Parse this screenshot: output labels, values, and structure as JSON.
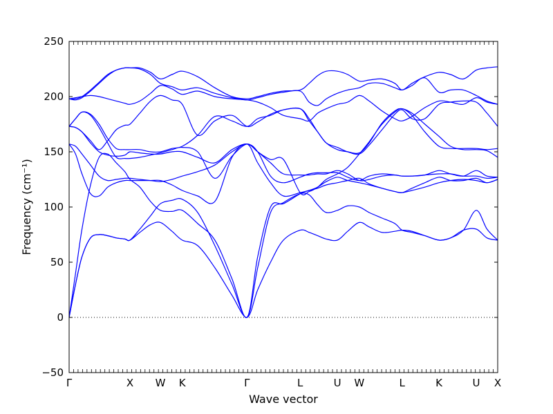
{
  "chart_data": {
    "type": "line",
    "title": "",
    "xlabel": "Wave vector",
    "ylabel": "Frequency (cm⁻¹)",
    "ylim": [
      -50,
      250
    ],
    "yticks": [
      -50,
      0,
      50,
      100,
      150,
      200,
      250
    ],
    "grid": false,
    "legend": "none",
    "line_color": "#0000ff",
    "zero_line": {
      "y": 0,
      "style": "dotted"
    },
    "xlim": [
      0,
      1
    ],
    "high_symmetry_points": [
      {
        "label": "Γ",
        "x": 0.0
      },
      {
        "label": "X",
        "x": 0.142
      },
      {
        "label": "W",
        "x": 0.213
      },
      {
        "label": "K",
        "x": 0.264
      },
      {
        "label": "Γ",
        "x": 0.415
      },
      {
        "label": "L",
        "x": 0.539
      },
      {
        "label": "U",
        "x": 0.626
      },
      {
        "label": "W",
        "x": 0.677
      },
      {
        "label": "L",
        "x": 0.777
      },
      {
        "label": "K",
        "x": 0.863
      },
      {
        "label": "U",
        "x": 0.95
      },
      {
        "label": "X",
        "x": 1.0
      }
    ],
    "series": [
      {
        "x": [
          0,
          0.015,
          0.03,
          0.05,
          0.07,
          0.09,
          0.11,
          0.13,
          0.142,
          0.165,
          0.19,
          0.213,
          0.24,
          0.264,
          0.3,
          0.34,
          0.38,
          0.415,
          0.44,
          0.47,
          0.5,
          0.539,
          0.56,
          0.58,
          0.6,
          0.626,
          0.65,
          0.677,
          0.7,
          0.73,
          0.76,
          0.777,
          0.8,
          0.83,
          0.863,
          0.89,
          0.92,
          0.95,
          0.975,
          1.0
        ],
        "y": [
          0,
          30,
          55,
          72,
          75,
          74,
          72,
          71,
          70,
          77,
          84,
          86,
          78,
          70,
          65,
          45,
          20,
          0,
          25,
          50,
          70,
          79,
          77,
          74,
          71,
          70,
          78,
          86,
          82,
          77,
          78,
          79,
          78,
          74,
          70,
          72,
          79,
          80,
          72,
          70
        ]
      },
      {
        "x": [
          0,
          0.015,
          0.03,
          0.05,
          0.07,
          0.09,
          0.11,
          0.13,
          0.142,
          0.165,
          0.19,
          0.213,
          0.24,
          0.264,
          0.3,
          0.34,
          0.38,
          0.415,
          0.44,
          0.47,
          0.5,
          0.539,
          0.56,
          0.58,
          0.6,
          0.626,
          0.65,
          0.677,
          0.7,
          0.73,
          0.76,
          0.777,
          0.8,
          0.83,
          0.863,
          0.89,
          0.92,
          0.95,
          0.975,
          1.0
        ],
        "y": [
          0,
          30,
          55,
          72,
          75,
          74,
          72,
          71,
          70,
          80,
          92,
          103,
          106,
          107,
          95,
          65,
          30,
          0,
          45,
          95,
          104,
          112,
          111,
          102,
          95,
          97,
          101,
          100,
          95,
          90,
          85,
          79,
          77,
          74,
          70,
          72,
          79,
          97,
          80,
          70
        ]
      },
      {
        "x": [
          0,
          0.015,
          0.03,
          0.05,
          0.07,
          0.09,
          0.11,
          0.13,
          0.142,
          0.165,
          0.19,
          0.213,
          0.24,
          0.264,
          0.3,
          0.34,
          0.38,
          0.415,
          0.44,
          0.47,
          0.5,
          0.539,
          0.56,
          0.58,
          0.6,
          0.626,
          0.65,
          0.677,
          0.7,
          0.73,
          0.76,
          0.777,
          0.8,
          0.83,
          0.863,
          0.89,
          0.92,
          0.95,
          0.975,
          1.0
        ],
        "y": [
          0,
          40,
          80,
          120,
          145,
          148,
          140,
          132,
          125,
          118,
          105,
          97,
          96,
          97,
          85,
          70,
          35,
          0,
          55,
          100,
          103,
          112,
          115,
          117,
          120,
          122,
          124,
          126,
          121,
          117,
          114,
          113,
          115,
          118,
          122,
          124,
          125,
          124,
          122,
          125
        ]
      },
      {
        "x": [
          0,
          0.015,
          0.03,
          0.05,
          0.07,
          0.09,
          0.11,
          0.13,
          0.142,
          0.165,
          0.19,
          0.213,
          0.24,
          0.264,
          0.3,
          0.34,
          0.38,
          0.415,
          0.44,
          0.47,
          0.5,
          0.539,
          0.56,
          0.58,
          0.6,
          0.626,
          0.65,
          0.677,
          0.7,
          0.73,
          0.76,
          0.777,
          0.8,
          0.83,
          0.863,
          0.89,
          0.92,
          0.95,
          0.975,
          1.0
        ],
        "y": [
          157,
          148,
          130,
          112,
          110,
          118,
          122,
          124,
          124,
          124,
          124,
          124,
          120,
          115,
          110,
          105,
          145,
          157,
          140,
          122,
          110,
          113,
          115,
          118,
          123,
          127,
          124,
          122,
          120,
          117,
          114,
          113,
          117,
          122,
          127,
          124,
          124,
          126,
          122,
          125
        ]
      },
      {
        "x": [
          0,
          0.015,
          0.03,
          0.05,
          0.07,
          0.09,
          0.11,
          0.13,
          0.142,
          0.165,
          0.19,
          0.213,
          0.24,
          0.264,
          0.3,
          0.34,
          0.38,
          0.415,
          0.44,
          0.47,
          0.5,
          0.539,
          0.56,
          0.58,
          0.6,
          0.626,
          0.65,
          0.677,
          0.7,
          0.73,
          0.76,
          0.777,
          0.8,
          0.83,
          0.863,
          0.89,
          0.92,
          0.95,
          0.975,
          1.0
        ],
        "y": [
          157,
          155,
          148,
          138,
          128,
          124,
          125,
          126,
          126,
          125,
          124,
          123,
          125,
          128,
          132,
          138,
          150,
          157,
          150,
          128,
          122,
          127,
          130,
          131,
          131,
          131,
          127,
          124,
          128,
          130,
          129,
          128,
          128,
          129,
          130,
          130,
          128,
          128,
          126,
          127
        ]
      },
      {
        "x": [
          0,
          0.015,
          0.03,
          0.05,
          0.07,
          0.09,
          0.11,
          0.13,
          0.142,
          0.165,
          0.19,
          0.213,
          0.24,
          0.264,
          0.3,
          0.34,
          0.38,
          0.415,
          0.44,
          0.47,
          0.5,
          0.539,
          0.56,
          0.58,
          0.6,
          0.626,
          0.65,
          0.677,
          0.7,
          0.73,
          0.76,
          0.777,
          0.8,
          0.83,
          0.863,
          0.89,
          0.92,
          0.95,
          0.975,
          1.0
        ],
        "y": [
          173,
          172,
          168,
          158,
          150,
          147,
          146,
          147,
          150,
          149,
          148,
          148,
          150,
          150,
          145,
          140,
          152,
          157,
          150,
          140,
          130,
          129,
          129,
          130,
          130,
          133,
          130,
          124,
          125,
          128,
          129,
          128,
          128,
          129,
          133,
          130,
          128,
          133,
          128,
          127
        ]
      },
      {
        "x": [
          0,
          0.015,
          0.03,
          0.05,
          0.07,
          0.09,
          0.11,
          0.13,
          0.142,
          0.165,
          0.19,
          0.213,
          0.24,
          0.264,
          0.3,
          0.34,
          0.38,
          0.415,
          0.44,
          0.47,
          0.5,
          0.539,
          0.56,
          0.58,
          0.6,
          0.626,
          0.65,
          0.677,
          0.7,
          0.73,
          0.76,
          0.777,
          0.8,
          0.83,
          0.863,
          0.89,
          0.92,
          0.95,
          0.975,
          1.0
        ],
        "y": [
          173,
          180,
          186,
          183,
          172,
          158,
          145,
          144,
          144,
          145,
          147,
          149,
          152,
          154,
          150,
          126,
          146,
          157,
          150,
          143,
          143,
          113,
          114,
          118,
          125,
          130,
          136,
          148,
          159,
          175,
          186,
          189,
          183,
          168,
          155,
          153,
          153,
          153,
          152,
          153
        ]
      },
      {
        "x": [
          0,
          0.015,
          0.03,
          0.05,
          0.07,
          0.09,
          0.11,
          0.13,
          0.142,
          0.165,
          0.19,
          0.213,
          0.24,
          0.264,
          0.3,
          0.34,
          0.38,
          0.415,
          0.44,
          0.47,
          0.5,
          0.539,
          0.56,
          0.58,
          0.6,
          0.626,
          0.65,
          0.677,
          0.7,
          0.73,
          0.76,
          0.777,
          0.8,
          0.83,
          0.863,
          0.89,
          0.92,
          0.95,
          0.975,
          1.0
        ],
        "y": [
          173,
          180,
          186,
          184,
          175,
          162,
          153,
          152,
          152,
          152,
          150,
          150,
          153,
          155,
          165,
          182,
          178,
          173,
          180,
          183,
          188,
          189,
          180,
          168,
          158,
          152,
          150,
          149,
          158,
          176,
          187,
          189,
          185,
          175,
          164,
          155,
          152,
          152,
          151,
          145
        ]
      },
      {
        "x": [
          0,
          0.015,
          0.03,
          0.05,
          0.07,
          0.09,
          0.11,
          0.13,
          0.142,
          0.165,
          0.19,
          0.213,
          0.24,
          0.264,
          0.3,
          0.34,
          0.38,
          0.415,
          0.44,
          0.47,
          0.5,
          0.539,
          0.56,
          0.58,
          0.6,
          0.626,
          0.65,
          0.677,
          0.7,
          0.73,
          0.76,
          0.777,
          0.8,
          0.83,
          0.863,
          0.89,
          0.92,
          0.95,
          0.975,
          1.0
        ],
        "y": [
          173,
          172,
          168,
          160,
          152,
          160,
          170,
          174,
          175,
          185,
          196,
          201,
          197,
          193,
          165,
          178,
          183,
          173,
          177,
          184,
          188,
          189,
          178,
          168,
          158,
          154,
          150,
          148,
          156,
          170,
          184,
          188,
          180,
          180,
          193,
          195,
          196,
          195,
          185,
          173
        ]
      },
      {
        "x": [
          0,
          0.015,
          0.03,
          0.05,
          0.07,
          0.09,
          0.11,
          0.13,
          0.142,
          0.165,
          0.19,
          0.213,
          0.24,
          0.264,
          0.3,
          0.34,
          0.38,
          0.415,
          0.44,
          0.47,
          0.5,
          0.539,
          0.56,
          0.58,
          0.6,
          0.626,
          0.65,
          0.677,
          0.7,
          0.73,
          0.76,
          0.777,
          0.8,
          0.83,
          0.863,
          0.89,
          0.92,
          0.95,
          0.975,
          1.0
        ],
        "y": [
          198,
          199,
          200,
          201,
          200,
          198,
          196,
          194,
          193,
          196,
          203,
          210,
          207,
          202,
          205,
          200,
          198,
          197,
          195,
          190,
          183,
          180,
          178,
          185,
          189,
          193,
          195,
          201,
          196,
          187,
          180,
          178,
          182,
          190,
          196,
          195,
          193,
          199,
          195,
          193
        ]
      },
      {
        "x": [
          0,
          0.015,
          0.03,
          0.05,
          0.07,
          0.09,
          0.11,
          0.13,
          0.142,
          0.165,
          0.19,
          0.213,
          0.24,
          0.264,
          0.3,
          0.34,
          0.38,
          0.415,
          0.44,
          0.47,
          0.5,
          0.539,
          0.56,
          0.58,
          0.6,
          0.626,
          0.65,
          0.677,
          0.7,
          0.73,
          0.76,
          0.777,
          0.8,
          0.83,
          0.863,
          0.89,
          0.92,
          0.95,
          0.975,
          1.0
        ],
        "y": [
          198,
          197,
          199,
          205,
          212,
          219,
          224,
          226,
          226,
          225,
          220,
          212,
          209,
          206,
          208,
          203,
          199,
          197,
          199,
          202,
          204,
          205,
          195,
          192,
          198,
          203,
          206,
          208,
          212,
          212,
          208,
          206,
          210,
          217,
          204,
          206,
          206,
          201,
          196,
          193
        ]
      },
      {
        "x": [
          0,
          0.015,
          0.03,
          0.05,
          0.07,
          0.09,
          0.11,
          0.13,
          0.142,
          0.165,
          0.19,
          0.213,
          0.24,
          0.264,
          0.3,
          0.34,
          0.38,
          0.415,
          0.44,
          0.47,
          0.5,
          0.539,
          0.56,
          0.58,
          0.6,
          0.626,
          0.65,
          0.677,
          0.7,
          0.73,
          0.76,
          0.777,
          0.8,
          0.83,
          0.863,
          0.89,
          0.92,
          0.95,
          0.975,
          1.0
        ],
        "y": [
          198,
          198,
          200,
          206,
          213,
          220,
          224,
          226,
          226,
          226,
          222,
          216,
          220,
          223,
          218,
          208,
          200,
          198,
          200,
          203,
          205,
          206,
          212,
          219,
          223,
          223,
          220,
          214,
          215,
          216,
          212,
          206,
          212,
          218,
          222,
          220,
          216,
          224,
          226,
          227
        ]
      }
    ]
  }
}
